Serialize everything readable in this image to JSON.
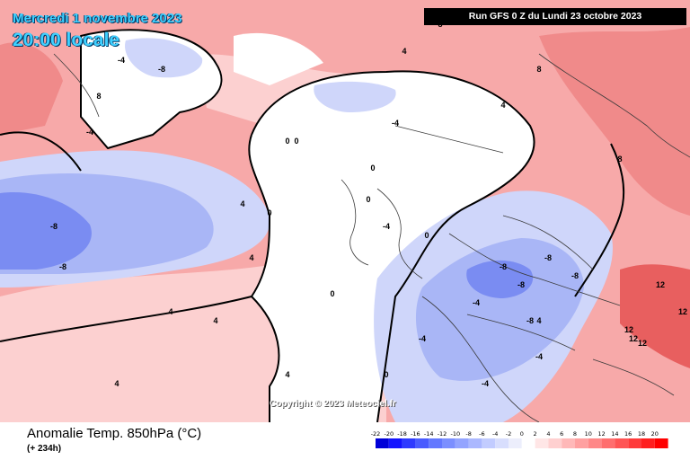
{
  "header": {
    "valid_date": "Mercredi 1 novembre 2023",
    "local_time": "20:00 locale",
    "run_info": "Run GFS 0 Z du Lundi 23 octobre 2023"
  },
  "footer": {
    "variable": "Anomalie Temp. 850hPa (°C)",
    "lead_time": "(+ 234h)"
  },
  "copyright": "Copyright © 2023 Meteociel.fr",
  "color_scale": {
    "labels": [
      "-22",
      "-20",
      "-18",
      "-16",
      "-14",
      "-12",
      "-10",
      "-8",
      "-6",
      "-4",
      "-2",
      "0",
      "2",
      "4",
      "6",
      "8",
      "10",
      "12",
      "14",
      "16",
      "18",
      "20"
    ],
    "colors": [
      "#0000d8",
      "#1414ff",
      "#2e3aff",
      "#4a5cff",
      "#6378ff",
      "#7b8fff",
      "#93a4ff",
      "#abb8ff",
      "#c2ccff",
      "#d8defd",
      "#eceefc",
      "#ffffff",
      "#ffe6e6",
      "#ffd0d0",
      "#ffb8b8",
      "#ffa0a0",
      "#ff8888",
      "#ff6e6e",
      "#ff5454",
      "#ff3a3a",
      "#ff1f1f",
      "#ff0000"
    ]
  },
  "map": {
    "contour_labels": [
      "-8",
      "-8",
      "-8",
      "-4",
      "-4",
      "-4",
      "-4",
      "-4",
      "-8",
      "-8",
      "-8",
      "-8",
      "-8",
      "-4",
      "-4",
      "-4",
      "0",
      "0",
      "0",
      "0",
      "0",
      "0",
      "0",
      "0",
      "4",
      "4",
      "4",
      "4",
      "4",
      "4",
      "4",
      "4",
      "4",
      "8",
      "8",
      "8",
      "8",
      "12",
      "12",
      "12",
      "12",
      "12"
    ],
    "palette": {
      "cold_strong": "#7a8cf2",
      "cold": "#a9b6f6",
      "cold_light": "#cfd6fa",
      "neutral": "#ffffff",
      "warm_light": "#fcd0d0",
      "warm": "#f7a9a9",
      "warm_strong": "#f08a8a",
      "hot": "#e85f5f",
      "zero_line": "#000000",
      "border_line": "#3a3a3a"
    }
  }
}
